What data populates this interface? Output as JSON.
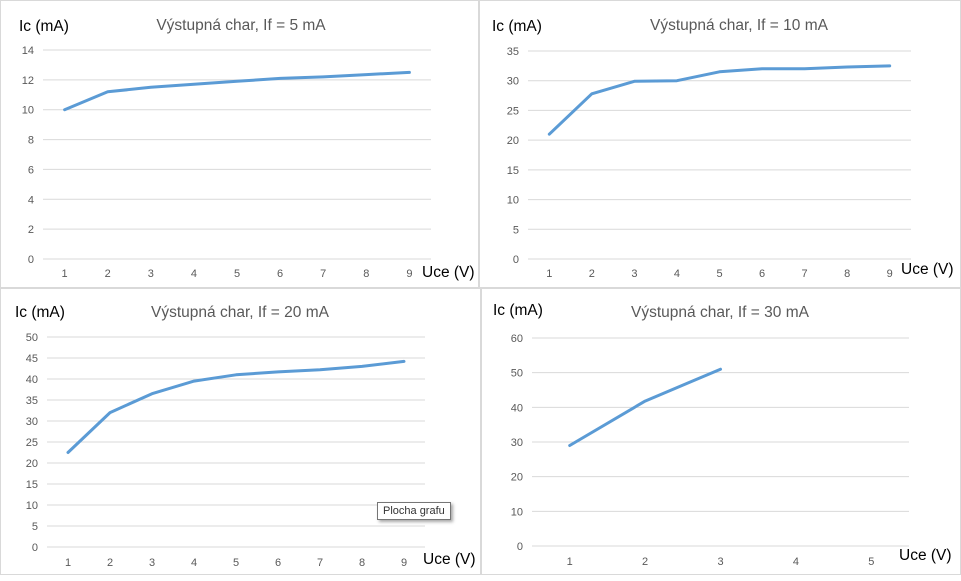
{
  "colors": {
    "series": "#5B9BD5",
    "grid": "#d9d9d9",
    "tick": "#595959",
    "title": "#595959",
    "axis_title": "#000000"
  },
  "tooltip": {
    "text": "Plocha grafu"
  },
  "chart_data": [
    {
      "type": "line",
      "title": "Výstupná char, If = 5 mA",
      "ylabel": "Ic (mA)",
      "xlabel": "Uce (V)",
      "x": [
        "1",
        "2",
        "3",
        "4",
        "5",
        "6",
        "7",
        "8",
        "9"
      ],
      "values": [
        10.0,
        11.2,
        11.5,
        11.7,
        11.9,
        12.1,
        12.2,
        12.35,
        12.5
      ],
      "ylim": [
        0,
        14
      ],
      "yticks": [
        0,
        2,
        4,
        6,
        8,
        10,
        12,
        14
      ],
      "grid": true,
      "legend": "none"
    },
    {
      "type": "line",
      "title": "Výstupná char, If = 10 mA",
      "ylabel": "Ic (mA)",
      "xlabel": "Uce (V)",
      "x": [
        "1",
        "2",
        "3",
        "4",
        "5",
        "6",
        "7",
        "8",
        "9"
      ],
      "values": [
        21.0,
        27.8,
        29.9,
        30.0,
        31.5,
        32.0,
        32.0,
        32.3,
        32.5
      ],
      "ylim": [
        0,
        35
      ],
      "yticks": [
        0,
        5,
        10,
        15,
        20,
        25,
        30,
        35
      ],
      "grid": true,
      "legend": "none"
    },
    {
      "type": "line",
      "title": "Výstupná char, If = 20 mA",
      "ylabel": "Ic (mA)",
      "xlabel": "Uce (V)",
      "x": [
        "1",
        "2",
        "3",
        "4",
        "5",
        "6",
        "7",
        "8",
        "9"
      ],
      "values": [
        22.5,
        32.0,
        36.5,
        39.5,
        41.0,
        41.7,
        42.2,
        43.0,
        44.2
      ],
      "ylim": [
        0,
        50
      ],
      "yticks": [
        0,
        5,
        10,
        15,
        20,
        25,
        30,
        35,
        40,
        45,
        50
      ],
      "grid": true,
      "legend": "none"
    },
    {
      "type": "line",
      "title": "Výstupná char, If = 30 mA",
      "ylabel": "Ic (mA)",
      "xlabel": "Uce (V)",
      "x": [
        "1",
        "2",
        "3",
        "4",
        "5"
      ],
      "values": [
        29.0,
        41.8,
        51.0,
        null,
        null
      ],
      "ylim": [
        0,
        60
      ],
      "yticks": [
        0,
        10,
        20,
        30,
        40,
        50,
        60
      ],
      "grid": true,
      "legend": "none"
    }
  ]
}
